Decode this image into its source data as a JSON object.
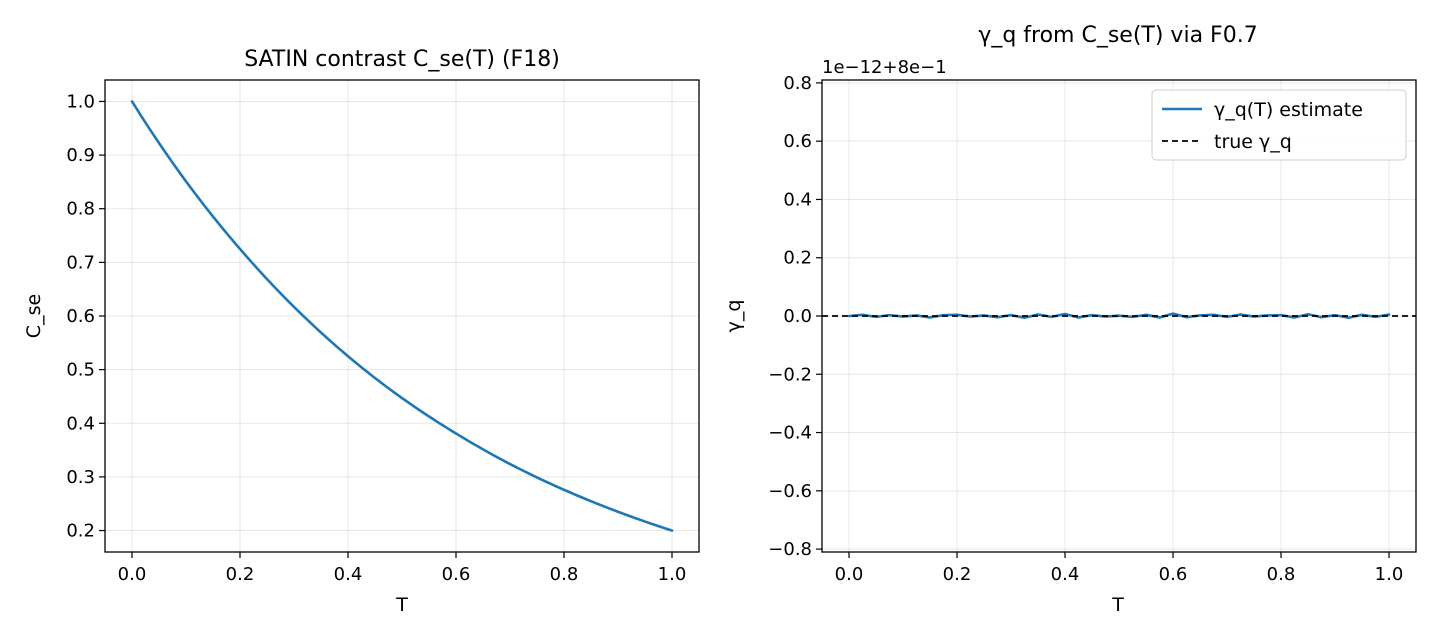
{
  "chart_data": [
    {
      "type": "line",
      "title": "SATIN contrast C_se(T) (F18)",
      "xlabel": "T",
      "ylabel": "C_se",
      "xlim": [
        -0.05,
        1.05
      ],
      "ylim": [
        0.16,
        1.04
      ],
      "xticks": [
        0.0,
        0.2,
        0.4,
        0.6,
        0.8,
        1.0
      ],
      "xtick_labels": [
        "0.0",
        "0.2",
        "0.4",
        "0.6",
        "0.8",
        "1.0"
      ],
      "yticks": [
        0.2,
        0.3,
        0.4,
        0.5,
        0.6,
        0.7,
        0.8,
        0.9,
        1.0
      ],
      "ytick_labels": [
        "0.2",
        "0.3",
        "0.4",
        "0.5",
        "0.6",
        "0.7",
        "0.8",
        "0.9",
        "1.0"
      ],
      "grid": true,
      "x": [
        0.0,
        0.1,
        0.2,
        0.3,
        0.4,
        0.5,
        0.6,
        0.7,
        0.8,
        0.9,
        1.0
      ],
      "series": [
        {
          "color": "#1f77b4",
          "values": [
            1.0,
            0.851,
            0.725,
            0.617,
            0.525,
            0.447,
            0.381,
            0.324,
            0.276,
            0.235,
            0.2
          ]
        }
      ]
    },
    {
      "type": "line",
      "title": "γ_q from C_se(T) via F0.7",
      "xlabel": "T",
      "ylabel": "γ_q",
      "offset_text": "1e−12+8e−1",
      "xlim": [
        -0.05,
        1.05
      ],
      "ylim": [
        -0.81,
        0.81
      ],
      "xticks": [
        0.0,
        0.2,
        0.4,
        0.6,
        0.8,
        1.0
      ],
      "xtick_labels": [
        "0.0",
        "0.2",
        "0.4",
        "0.6",
        "0.8",
        "1.0"
      ],
      "yticks": [
        -0.8,
        -0.6,
        -0.4,
        -0.2,
        0.0,
        0.2,
        0.4,
        0.6,
        0.8
      ],
      "ytick_labels": [
        "−0.8",
        "−0.6",
        "−0.4",
        "−0.2",
        "0.0",
        "0.2",
        "0.4",
        "0.6",
        "0.8"
      ],
      "grid": true,
      "legend_position": "top-right",
      "x": [
        0.0,
        0.025,
        0.05,
        0.075,
        0.1,
        0.125,
        0.15,
        0.175,
        0.2,
        0.225,
        0.25,
        0.275,
        0.3,
        0.325,
        0.35,
        0.375,
        0.4,
        0.425,
        0.45,
        0.475,
        0.5,
        0.525,
        0.55,
        0.575,
        0.6,
        0.625,
        0.65,
        0.675,
        0.7,
        0.725,
        0.75,
        0.775,
        0.8,
        0.825,
        0.85,
        0.875,
        0.9,
        0.925,
        0.95,
        0.975,
        1.0
      ],
      "series": [
        {
          "name": "γ_q(T) estimate",
          "color": "#1f77b4",
          "style": "solid",
          "values": [
            0.0,
            0.004,
            -0.003,
            0.003,
            -0.002,
            0.002,
            -0.005,
            0.003,
            0.004,
            -0.002,
            0.002,
            -0.004,
            0.003,
            -0.006,
            0.005,
            -0.003,
            0.007,
            -0.005,
            0.003,
            -0.002,
            0.001,
            -0.003,
            0.004,
            -0.005,
            0.008,
            -0.004,
            0.002,
            0.004,
            -0.003,
            0.005,
            -0.002,
            0.002,
            0.003,
            -0.005,
            0.006,
            -0.004,
            0.003,
            -0.006,
            0.004,
            -0.003,
            0.005
          ]
        },
        {
          "name": "true γ_q",
          "color": "#000000",
          "style": "dashed",
          "constant": 0.0
        }
      ]
    }
  ]
}
